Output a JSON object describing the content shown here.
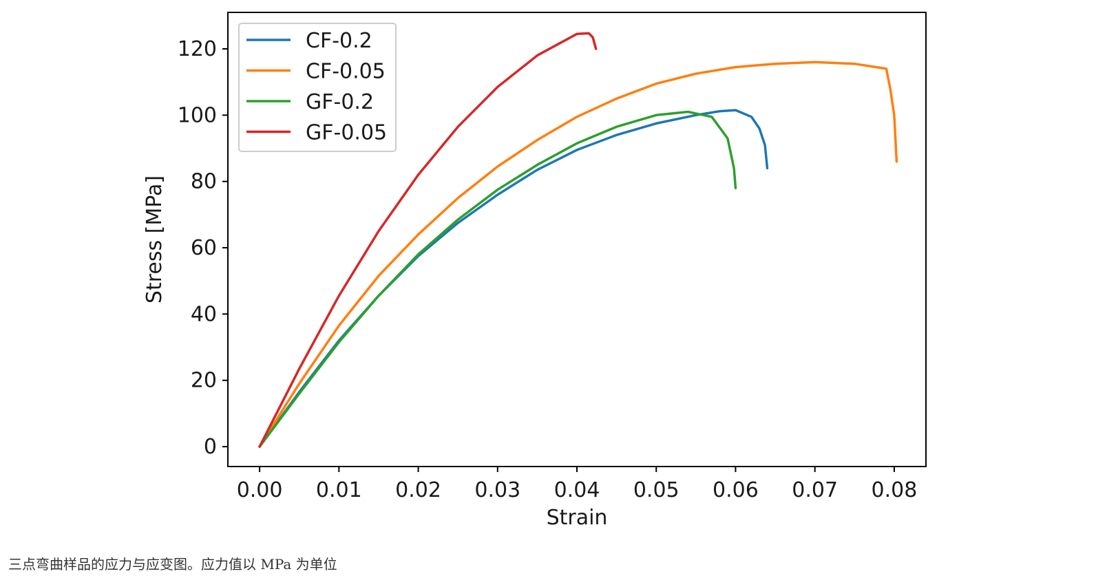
{
  "chart_data": {
    "type": "line",
    "title": "",
    "xlabel": "Strain",
    "ylabel": "Stress [MPa]",
    "xlim": [
      -0.004,
      0.084
    ],
    "ylim": [
      -6,
      131
    ],
    "xticks": [
      0.0,
      0.01,
      0.02,
      0.03,
      0.04,
      0.05,
      0.06,
      0.07,
      0.08
    ],
    "xtick_labels": [
      "0.00",
      "0.01",
      "0.02",
      "0.03",
      "0.04",
      "0.05",
      "0.06",
      "0.07",
      "0.08"
    ],
    "yticks": [
      0,
      20,
      40,
      60,
      80,
      100,
      120
    ],
    "ytick_labels": [
      "0",
      "20",
      "40",
      "60",
      "80",
      "100",
      "120"
    ],
    "grid": false,
    "legend_position": "top-left",
    "series": [
      {
        "name": "CF-0.2",
        "color": "#1f77b4",
        "points": [
          [
            0.0,
            0.0
          ],
          [
            0.005,
            16.5
          ],
          [
            0.01,
            32.0
          ],
          [
            0.015,
            45.5
          ],
          [
            0.02,
            57.5
          ],
          [
            0.025,
            67.5
          ],
          [
            0.03,
            76.0
          ],
          [
            0.035,
            83.5
          ],
          [
            0.04,
            89.5
          ],
          [
            0.045,
            94.0
          ],
          [
            0.05,
            97.5
          ],
          [
            0.055,
            100.0
          ],
          [
            0.058,
            101.2
          ],
          [
            0.06,
            101.5
          ],
          [
            0.062,
            99.5
          ],
          [
            0.063,
            96.0
          ],
          [
            0.0637,
            91.0
          ],
          [
            0.064,
            84.0
          ]
        ]
      },
      {
        "name": "CF-0.05",
        "color": "#ff7f0e",
        "points": [
          [
            0.0,
            0.0
          ],
          [
            0.005,
            19.0
          ],
          [
            0.01,
            36.5
          ],
          [
            0.015,
            51.5
          ],
          [
            0.02,
            64.0
          ],
          [
            0.025,
            75.0
          ],
          [
            0.03,
            84.5
          ],
          [
            0.035,
            92.5
          ],
          [
            0.04,
            99.5
          ],
          [
            0.045,
            105.0
          ],
          [
            0.05,
            109.5
          ],
          [
            0.055,
            112.5
          ],
          [
            0.06,
            114.5
          ],
          [
            0.065,
            115.5
          ],
          [
            0.07,
            116.0
          ],
          [
            0.075,
            115.5
          ],
          [
            0.079,
            114.0
          ],
          [
            0.0795,
            108.0
          ],
          [
            0.08,
            100.0
          ],
          [
            0.0803,
            86.0
          ]
        ]
      },
      {
        "name": "GF-0.2",
        "color": "#2ca02c",
        "points": [
          [
            0.0,
            0.0
          ],
          [
            0.005,
            16.0
          ],
          [
            0.01,
            31.5
          ],
          [
            0.015,
            45.5
          ],
          [
            0.02,
            58.0
          ],
          [
            0.025,
            68.5
          ],
          [
            0.03,
            77.5
          ],
          [
            0.035,
            85.0
          ],
          [
            0.04,
            91.5
          ],
          [
            0.045,
            96.5
          ],
          [
            0.05,
            100.0
          ],
          [
            0.054,
            101.0
          ],
          [
            0.057,
            99.5
          ],
          [
            0.059,
            93.0
          ],
          [
            0.0598,
            84.0
          ],
          [
            0.06,
            78.0
          ]
        ]
      },
      {
        "name": "GF-0.05",
        "color": "#d62728",
        "points": [
          [
            0.0,
            0.0
          ],
          [
            0.005,
            23.5
          ],
          [
            0.01,
            45.5
          ],
          [
            0.015,
            65.0
          ],
          [
            0.02,
            82.0
          ],
          [
            0.025,
            96.5
          ],
          [
            0.03,
            108.5
          ],
          [
            0.035,
            118.0
          ],
          [
            0.04,
            124.5
          ],
          [
            0.0415,
            124.7
          ],
          [
            0.042,
            123.5
          ],
          [
            0.0424,
            120.0
          ]
        ]
      }
    ]
  },
  "caption": "三点弯曲样品的应力与应变图。应力值以 MPa 为单位"
}
